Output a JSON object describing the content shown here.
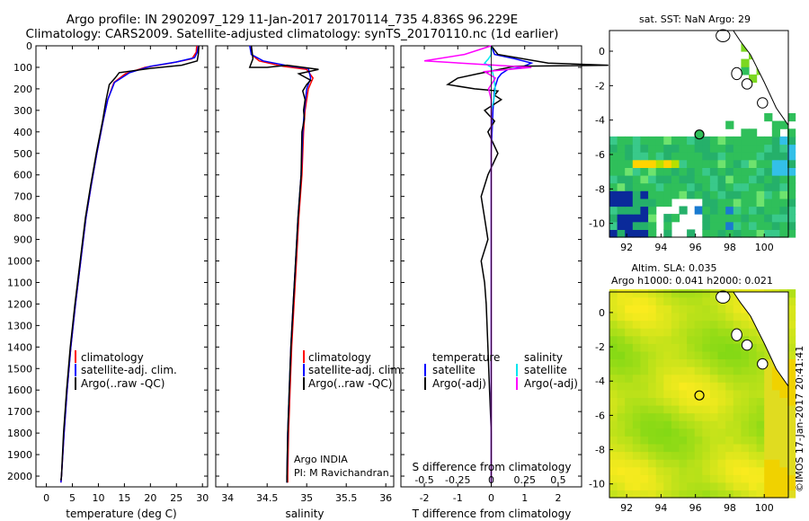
{
  "header": {
    "line1": "Argo profile: IN 2902097_129 11-Jan-2017 20170114_735 4.836S 96.229E",
    "line2": "Climatology: CARS2009. Satellite-adjusted climatology: synTS_20170110.nc (1d earlier)"
  },
  "colors": {
    "climatology": "#ff0000",
    "satellite": "#0000ff",
    "argo": "#000000",
    "salinity_sat": "#00e5ee",
    "salinity_argo": "#ff00ff"
  },
  "footer": "©IMOS 17-Jan-2017 20:41:41",
  "chart_data": [
    {
      "type": "line",
      "xlabel": "temperature (deg C)",
      "ylabel": "",
      "xlim": [
        -2,
        31
      ],
      "ylim": [
        2050,
        0
      ],
      "xticks": [
        0,
        5,
        10,
        15,
        20,
        25,
        30
      ],
      "yticks": [
        0,
        100,
        200,
        300,
        400,
        500,
        600,
        700,
        800,
        900,
        1000,
        1100,
        1200,
        1300,
        1400,
        1500,
        1600,
        1700,
        1800,
        1900,
        2000
      ],
      "legend": [
        "climatology",
        "satellite-adj. clim.",
        "Argo(..raw -QC)"
      ],
      "series": [
        {
          "name": "climatology",
          "color": "#ff0000",
          "points": [
            [
              28.9,
              0
            ],
            [
              28.8,
              30
            ],
            [
              28.0,
              60
            ],
            [
              24.0,
              80
            ],
            [
              19.0,
              100
            ],
            [
              15.2,
              130
            ],
            [
              13.0,
              170
            ],
            [
              11.8,
              250
            ],
            [
              10.9,
              350
            ],
            [
              9.7,
              500
            ],
            [
              8.6,
              650
            ],
            [
              7.6,
              800
            ],
            [
              6.6,
              1000
            ],
            [
              5.6,
              1200
            ],
            [
              4.7,
              1400
            ],
            [
              4.0,
              1600
            ],
            [
              3.4,
              1800
            ],
            [
              2.9,
              2000
            ],
            [
              2.8,
              2030
            ]
          ]
        },
        {
          "name": "satellite-adj. clim.",
          "color": "#0000ff",
          "points": [
            [
              29.2,
              0
            ],
            [
              29.0,
              30
            ],
            [
              28.5,
              55
            ],
            [
              25.0,
              75
            ],
            [
              20.0,
              95
            ],
            [
              16.0,
              125
            ],
            [
              13.1,
              170
            ],
            [
              11.8,
              250
            ],
            [
              10.9,
              350
            ],
            [
              9.7,
              500
            ],
            [
              8.6,
              650
            ],
            [
              7.6,
              800
            ],
            [
              6.6,
              1000
            ],
            [
              5.6,
              1200
            ],
            [
              4.7,
              1400
            ],
            [
              4.0,
              1600
            ],
            [
              3.4,
              1800
            ],
            [
              2.9,
              2000
            ],
            [
              2.8,
              2030
            ]
          ]
        },
        {
          "name": "Argo(..raw -QC)",
          "color": "#000000",
          "points": [
            [
              29.3,
              0
            ],
            [
              29.2,
              40
            ],
            [
              29.0,
              70
            ],
            [
              26.0,
              90
            ],
            [
              20.0,
              105
            ],
            [
              14.0,
              125
            ],
            [
              13.2,
              150
            ],
            [
              12.1,
              180
            ],
            [
              11.5,
              250
            ],
            [
              10.8,
              350
            ],
            [
              9.6,
              500
            ],
            [
              8.5,
              650
            ],
            [
              7.5,
              800
            ],
            [
              6.5,
              1000
            ],
            [
              5.5,
              1200
            ],
            [
              4.6,
              1400
            ],
            [
              3.9,
              1600
            ],
            [
              3.3,
              1800
            ],
            [
              2.9,
              2000
            ],
            [
              2.8,
              2020
            ]
          ]
        }
      ]
    },
    {
      "type": "line",
      "xlabel": "salinity",
      "xlim": [
        33.85,
        36.1
      ],
      "ylim": [
        2050,
        0
      ],
      "xticks": [
        34,
        34.5,
        35,
        35.5,
        36
      ],
      "legend": [
        "climatology",
        "satellite-adj. clim.",
        "Argo(..raw -QC)"
      ],
      "annotation": [
        "Argo INDIA",
        "PI: M Ravichandran"
      ],
      "series": [
        {
          "name": "climatology",
          "color": "#ff0000",
          "points": [
            [
              34.3,
              0
            ],
            [
              34.3,
              40
            ],
            [
              34.4,
              70
            ],
            [
              34.7,
              95
            ],
            [
              35.0,
              110
            ],
            [
              35.08,
              150
            ],
            [
              35.02,
              200
            ],
            [
              34.98,
              300
            ],
            [
              34.96,
              400
            ],
            [
              34.94,
              600
            ],
            [
              34.9,
              800
            ],
            [
              34.87,
              1000
            ],
            [
              34.84,
              1200
            ],
            [
              34.81,
              1400
            ],
            [
              34.79,
              1600
            ],
            [
              34.77,
              1800
            ],
            [
              34.76,
              2000
            ],
            [
              34.76,
              2030
            ]
          ]
        },
        {
          "name": "satellite-adj. clim.",
          "color": "#0000ff",
          "points": [
            [
              34.28,
              0
            ],
            [
              34.3,
              40
            ],
            [
              34.45,
              70
            ],
            [
              34.8,
              95
            ],
            [
              35.02,
              105
            ],
            [
              35.05,
              150
            ],
            [
              35.0,
              200
            ],
            [
              34.97,
              300
            ],
            [
              34.95,
              400
            ],
            [
              34.93,
              600
            ],
            [
              34.89,
              800
            ],
            [
              34.86,
              1000
            ],
            [
              34.83,
              1200
            ],
            [
              34.8,
              1400
            ],
            [
              34.78,
              1600
            ],
            [
              34.76,
              1800
            ],
            [
              34.75,
              2000
            ],
            [
              34.75,
              2030
            ]
          ]
        },
        {
          "name": "Argo(..raw -QC)",
          "color": "#000000",
          "points": [
            [
              34.3,
              0
            ],
            [
              34.32,
              60
            ],
            [
              34.28,
              100
            ],
            [
              34.5,
              100
            ],
            [
              34.75,
              90
            ],
            [
              35.15,
              110
            ],
            [
              34.9,
              130
            ],
            [
              35.05,
              160
            ],
            [
              35.0,
              180
            ],
            [
              34.95,
              210
            ],
            [
              34.98,
              250
            ],
            [
              34.96,
              300
            ],
            [
              34.97,
              340
            ],
            [
              34.94,
              400
            ],
            [
              34.93,
              600
            ],
            [
              34.89,
              800
            ],
            [
              34.86,
              1000
            ],
            [
              34.83,
              1200
            ],
            [
              34.8,
              1400
            ],
            [
              34.78,
              1600
            ],
            [
              34.76,
              1800
            ],
            [
              34.75,
              2000
            ],
            [
              34.75,
              2030
            ]
          ]
        }
      ]
    },
    {
      "type": "line",
      "xlabel": "T difference from climatology",
      "xlabel_top": "S difference from climatology",
      "xlim": [
        -2.7,
        2.7
      ],
      "ylim": [
        2050,
        0
      ],
      "xticks": [
        -2,
        -1,
        0,
        1,
        2
      ],
      "xticks_s": [
        -0.5,
        -0.25,
        0,
        0.25,
        0.5
      ],
      "legend_t": [
        "temperature",
        "satellite",
        "Argo(-adj)"
      ],
      "legend_s": [
        "salinity",
        "satellite",
        "Argo(-adj)"
      ],
      "series": [
        {
          "name": "temperature satellite",
          "color": "#0000ff",
          "points": [
            [
              0,
              0
            ],
            [
              0.1,
              40
            ],
            [
              0.7,
              60
            ],
            [
              1.2,
              80
            ],
            [
              0.9,
              100
            ],
            [
              0.5,
              110
            ],
            [
              0.3,
              130
            ],
            [
              0.2,
              150
            ],
            [
              0.1,
              200
            ],
            [
              0.05,
              300
            ],
            [
              0,
              500
            ],
            [
              0,
              1000
            ],
            [
              0,
              2000
            ],
            [
              0,
              2030
            ]
          ]
        },
        {
          "name": "temperature Argo(-adj)",
          "color": "#000000",
          "points": [
            [
              0,
              0
            ],
            [
              0.2,
              40
            ],
            [
              1.7,
              80
            ],
            [
              3.5,
              90
            ],
            [
              0.7,
              95
            ],
            [
              -0.4,
              130
            ],
            [
              -1.0,
              150
            ],
            [
              -1.3,
              180
            ],
            [
              -0.5,
              200
            ],
            [
              0.2,
              210
            ],
            [
              0.1,
              230
            ],
            [
              0.3,
              250
            ],
            [
              -0.2,
              300
            ],
            [
              0.1,
              350
            ],
            [
              -0.1,
              400
            ],
            [
              0.2,
              500
            ],
            [
              -0.1,
              600
            ],
            [
              -0.3,
              700
            ],
            [
              -0.2,
              800
            ],
            [
              -0.1,
              900
            ],
            [
              -0.3,
              1000
            ],
            [
              -0.2,
              1100
            ],
            [
              -0.15,
              1200
            ],
            [
              -0.1,
              1400
            ],
            [
              -0.05,
              1600
            ],
            [
              0,
              1800
            ],
            [
              0,
              2000
            ],
            [
              0,
              2020
            ]
          ]
        },
        {
          "name": "salinity satellite",
          "color": "#00e5ee",
          "points": [
            [
              0,
              0
            ],
            [
              0,
              40
            ],
            [
              -0.02,
              60
            ],
            [
              -0.05,
              80
            ],
            [
              0,
              100
            ],
            [
              0.02,
              150
            ],
            [
              0.03,
              200
            ],
            [
              0.02,
              250
            ],
            [
              0,
              300
            ],
            [
              0,
              500
            ],
            [
              0,
              1000
            ],
            [
              0,
              2000
            ],
            [
              0,
              2030
            ]
          ]
        },
        {
          "name": "salinity Argo(-adj)",
          "color": "#ff00ff",
          "points": [
            [
              0,
              0
            ],
            [
              -0.2,
              40
            ],
            [
              -0.5,
              70
            ],
            [
              0.3,
              100
            ],
            [
              -0.05,
              120
            ],
            [
              0.03,
              150
            ],
            [
              -0.02,
              200
            ],
            [
              0,
              250
            ],
            [
              0,
              300
            ],
            [
              0,
              500
            ],
            [
              0,
              1000
            ],
            [
              0,
              2000
            ],
            [
              0,
              2030
            ]
          ]
        }
      ]
    },
    {
      "type": "heatmap",
      "title": "sat. SST: NaN Argo: 29",
      "xlim": [
        91,
        101.4
      ],
      "ylim": [
        -10.8,
        1.2
      ],
      "xticks": [
        92,
        94,
        96,
        98,
        100
      ],
      "yticks": [
        0,
        -2,
        -4,
        -6,
        -8,
        -10
      ],
      "argo_position": [
        96.229,
        -4.836
      ]
    },
    {
      "type": "heatmap",
      "title_line1": "Altim. SLA: 0.035",
      "title_line2": "Argo h1000: 0.041 h2000: 0.021",
      "xlim": [
        91,
        101.4
      ],
      "ylim": [
        -10.8,
        1.2
      ],
      "xticks": [
        92,
        94,
        96,
        98,
        100
      ],
      "yticks": [
        0,
        -2,
        -4,
        -6,
        -8,
        -10
      ],
      "argo_position": [
        96.229,
        -4.836
      ]
    }
  ]
}
